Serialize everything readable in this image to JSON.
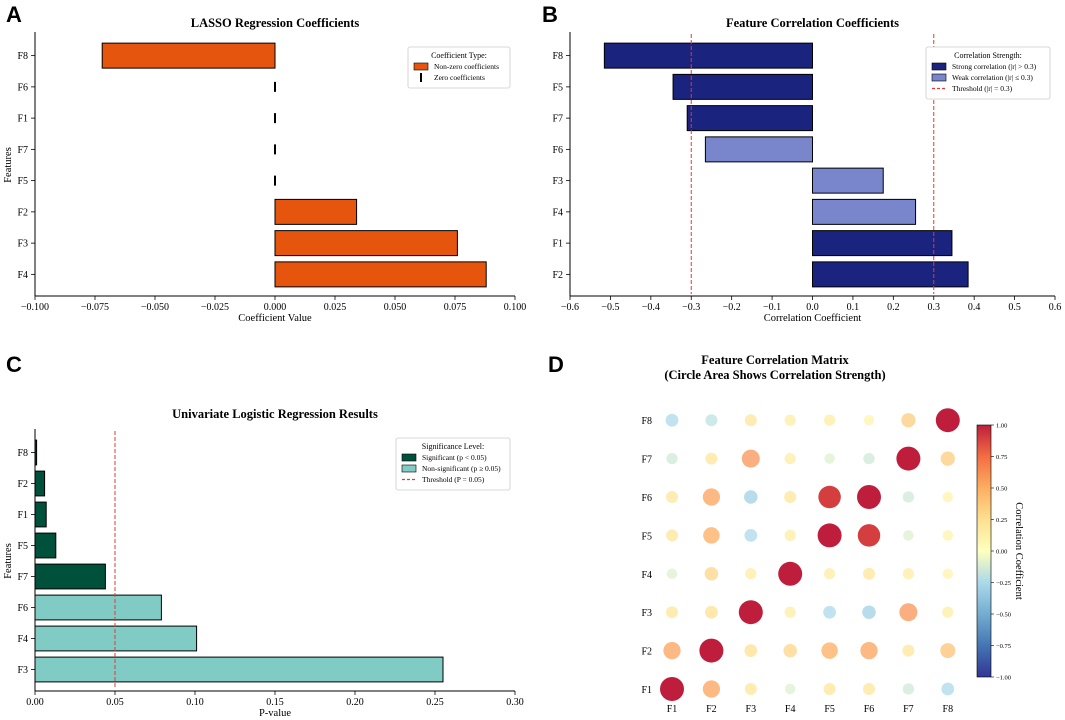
{
  "panels": {
    "a": "A",
    "b": "B",
    "c": "C",
    "d": "D"
  },
  "chart_data": [
    {
      "type": "bar",
      "orientation": "horizontal",
      "title": "LASSO Regression Coefficients",
      "xlabel": "Coefficient Value",
      "ylabel": "Features",
      "xlim": [
        -0.1,
        0.1
      ],
      "xticks": [
        "−0.100",
        "−0.075",
        "−0.050",
        "−0.025",
        "0.000",
        "0.025",
        "0.050",
        "0.075",
        "0.100"
      ],
      "categories": [
        "F8",
        "F6",
        "F1",
        "F7",
        "F5",
        "F2",
        "F3",
        "F4"
      ],
      "values": [
        -0.072,
        0.0,
        0.0,
        0.0,
        0.0,
        0.034,
        0.076,
        0.088
      ],
      "legend": {
        "title": "Coefficient Type:",
        "position": "top-right",
        "entries": [
          {
            "label": "Non-zero coefficients",
            "color": "#e6550d",
            "kind": "bar"
          },
          {
            "label": "Zero coefficients",
            "color": "#000000",
            "kind": "tick"
          }
        ]
      },
      "colors": {
        "nonzero": "#e6550d",
        "zero": "#000000"
      }
    },
    {
      "type": "bar",
      "orientation": "horizontal",
      "title": "Feature Correlation Coefficients",
      "xlabel": "Correlation Coefficient",
      "xlim": [
        -0.6,
        0.6
      ],
      "xticks": [
        "−0.6",
        "−0.5",
        "−0.4",
        "−0.3",
        "−0.2",
        "−0.1",
        "0.0",
        "0.1",
        "0.2",
        "0.3",
        "0.4",
        "0.5",
        "0.6"
      ],
      "categories": [
        "F8",
        "F5",
        "F7",
        "F6",
        "F3",
        "F4",
        "F1",
        "F2"
      ],
      "values": [
        -0.515,
        -0.345,
        -0.31,
        -0.265,
        0.175,
        0.255,
        0.345,
        0.385
      ],
      "threshold": 0.3,
      "legend": {
        "title": "Correlation Strength:",
        "position": "top-right",
        "entries": [
          {
            "label": "Strong correlation (|r| > 0.3)",
            "color": "#1a237e",
            "kind": "bar"
          },
          {
            "label": "Weak correlation (|r| ≤ 0.3)",
            "color": "#7986cb",
            "kind": "bar"
          },
          {
            "label": "Threshold (|r| = 0.3)",
            "color": "#e53935",
            "kind": "dash"
          }
        ]
      },
      "colors": {
        "strong": "#1a237e",
        "weak": "#7986cb",
        "threshold": "#e53935"
      }
    },
    {
      "type": "bar",
      "orientation": "horizontal",
      "title": "Univariate Logistic Regression Results",
      "xlabel": "P-value",
      "ylabel": "Features",
      "xlim": [
        0,
        0.3
      ],
      "xticks": [
        "0.00",
        "0.05",
        "0.10",
        "0.15",
        "0.20",
        "0.25",
        "0.30"
      ],
      "categories": [
        "F8",
        "F2",
        "F1",
        "F5",
        "F7",
        "F6",
        "F4",
        "F3"
      ],
      "values": [
        0.001,
        0.006,
        0.007,
        0.013,
        0.044,
        0.079,
        0.101,
        0.255
      ],
      "threshold": 0.05,
      "legend": {
        "title": "Significance Level:",
        "position": "top-right",
        "entries": [
          {
            "label": "Significant (p < 0.05)",
            "color": "#00513b",
            "kind": "bar"
          },
          {
            "label": "Non-significant (p ≥ 0.05)",
            "color": "#80cbc4",
            "kind": "bar"
          },
          {
            "label": "Threshold (P = 0.05)",
            "color": "#e53935",
            "kind": "dash"
          }
        ]
      },
      "colors": {
        "sig": "#00513b",
        "nonsig": "#80cbc4",
        "threshold": "#e53935"
      }
    },
    {
      "type": "heatmap",
      "title_lines": [
        "Feature Correlation Matrix",
        "(Circle Area Shows Correlation Strength)"
      ],
      "x": [
        "F1",
        "F2",
        "F3",
        "F4",
        "F5",
        "F6",
        "F7",
        "F8"
      ],
      "y": [
        "F1",
        "F2",
        "F3",
        "F4",
        "F5",
        "F6",
        "F7",
        "F8"
      ],
      "matrix": [
        [
          1.0,
          0.55,
          0.2,
          -0.1,
          0.2,
          0.2,
          -0.15,
          -0.25
        ],
        [
          0.55,
          1.0,
          0.25,
          0.3,
          0.5,
          0.55,
          0.2,
          0.4
        ],
        [
          0.2,
          0.25,
          1.0,
          0.15,
          -0.25,
          -0.3,
          0.6,
          0.15
        ],
        [
          -0.1,
          0.3,
          0.15,
          1.0,
          0.15,
          0.2,
          0.15,
          0.1
        ],
        [
          0.2,
          0.5,
          -0.25,
          0.15,
          1.0,
          0.9,
          -0.1,
          0.1
        ],
        [
          0.2,
          0.55,
          -0.3,
          0.2,
          0.9,
          1.0,
          -0.15,
          0.1
        ],
        [
          -0.15,
          0.2,
          0.6,
          0.15,
          -0.1,
          -0.15,
          1.0,
          0.35
        ],
        [
          -0.25,
          -0.2,
          0.2,
          0.15,
          0.15,
          0.1,
          0.35,
          1.0
        ]
      ],
      "colorbar": {
        "label": "Correlation Coefficient",
        "range": [
          -1,
          1
        ],
        "ticks": [
          "1.00",
          "0.75",
          "0.50",
          "0.25",
          "0.00",
          "−0.25",
          "−0.50",
          "−0.75",
          "−1.00"
        ],
        "colormap": "RdYlBu_r"
      }
    }
  ]
}
